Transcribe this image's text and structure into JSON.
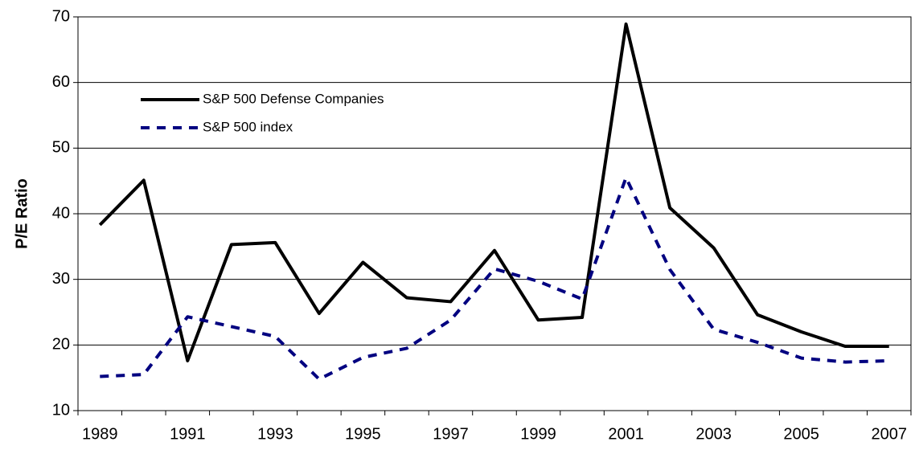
{
  "chart_data": {
    "type": "line",
    "y_label": "P/E Ratio",
    "categories": [
      "1989",
      null,
      "1991",
      null,
      "1993",
      null,
      "1995",
      null,
      "1997",
      null,
      "1999",
      null,
      "2001",
      null,
      "2003",
      null,
      "2005",
      null,
      "2007"
    ],
    "series": [
      {
        "name": "S&P 500 Defense Companies",
        "color": "#000000",
        "dash": "solid",
        "values": [
          38.3,
          45.1,
          17.6,
          35.3,
          35.6,
          24.8,
          32.6,
          27.2,
          26.6,
          34.4,
          23.8,
          24.2,
          68.9,
          40.9,
          34.8,
          24.6,
          22.0,
          19.8,
          19.8
        ]
      },
      {
        "name": "S&P 500 index",
        "color": "#000080",
        "dash": "dashed",
        "values": [
          15.2,
          15.5,
          24.3,
          22.8,
          21.3,
          14.8,
          18.1,
          19.5,
          23.8,
          31.6,
          29.7,
          27.0,
          45.5,
          31.5,
          22.4,
          20.4,
          18.0,
          17.4,
          17.6
        ]
      }
    ],
    "ylim": [
      10,
      70
    ],
    "yticks": [
      10,
      20,
      30,
      40,
      50,
      60,
      70
    ],
    "grid": true
  }
}
